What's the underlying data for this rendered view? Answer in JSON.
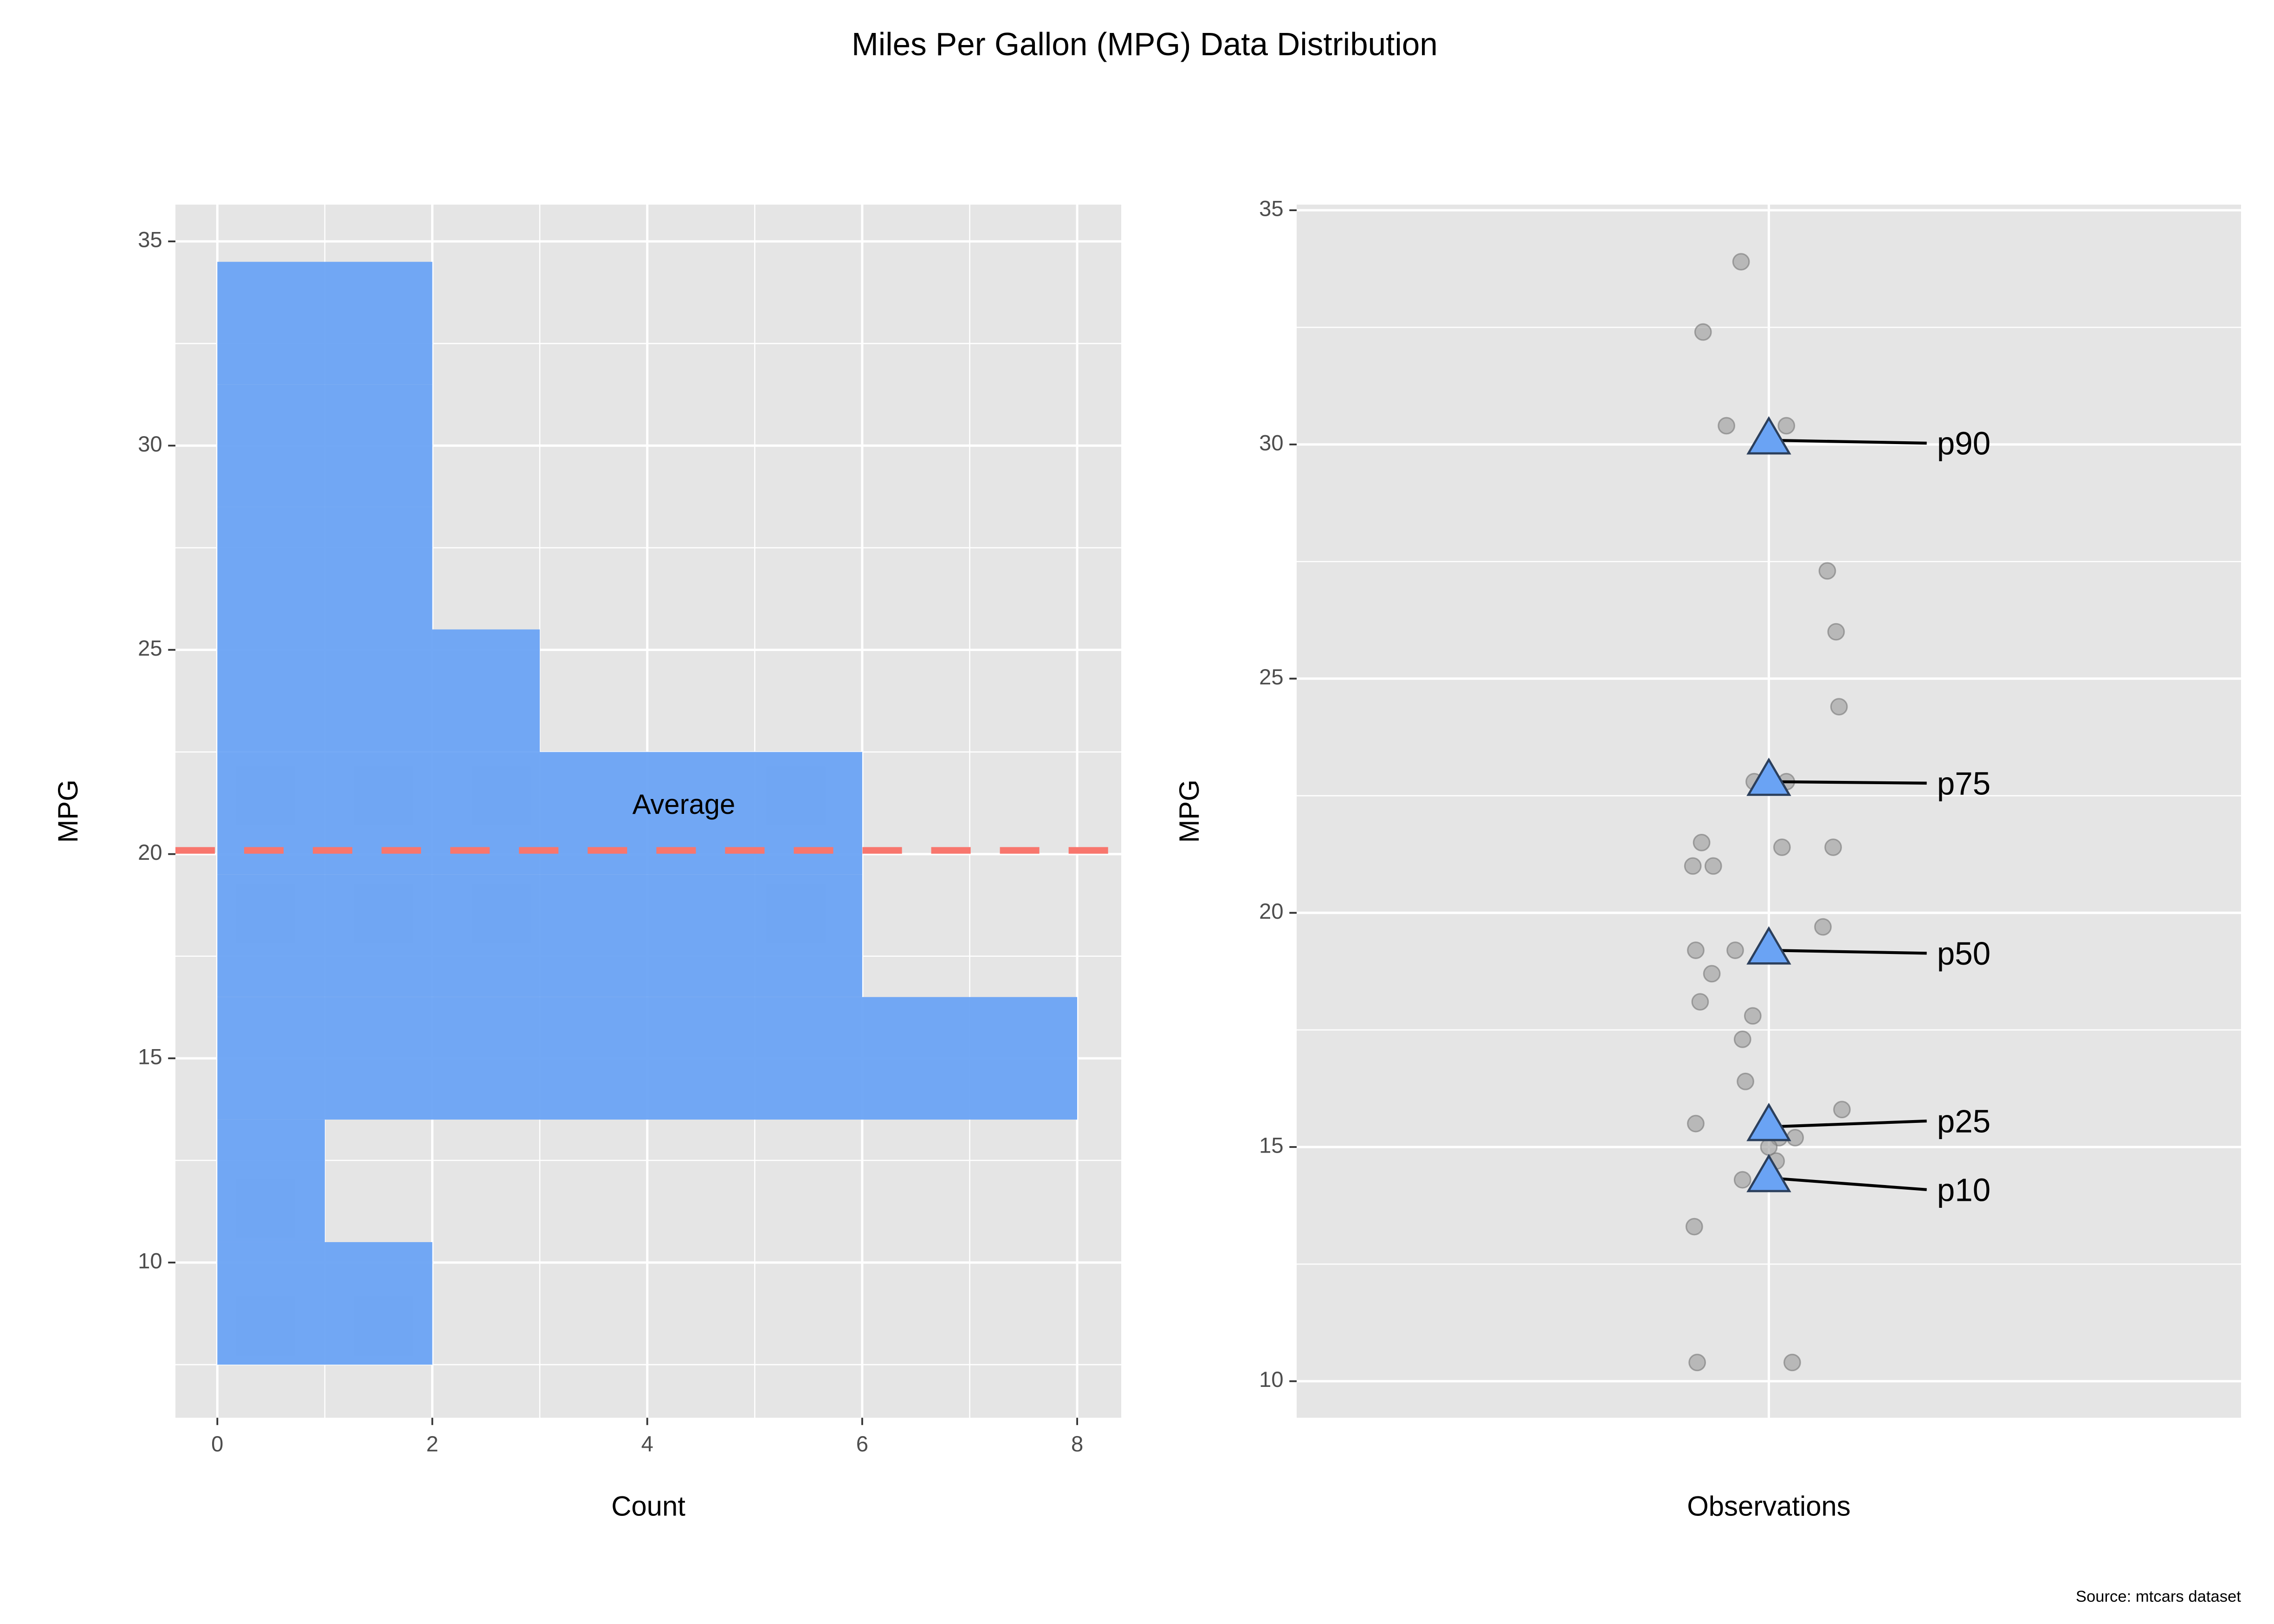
{
  "title": "Miles Per Gallon (MPG) Data Distribution",
  "caption": "Source: mtcars dataset",
  "chart_data": [
    {
      "type": "histogram",
      "orientation": "horizontal",
      "bins": [
        7.5,
        10.5,
        13.5,
        16.5,
        19.5,
        22.5,
        25.5,
        28.5,
        31.5,
        34.5
      ],
      "counts": [
        2,
        1,
        8,
        6,
        6,
        3,
        2,
        2,
        2
      ],
      "color": "#6aa3f4",
      "xlabel": "Count",
      "ylabel": "MPG",
      "xlim": [
        -0.39,
        8.41
      ],
      "xticks": [
        0,
        2,
        4,
        6,
        8
      ],
      "ylim": [
        6.2,
        35.9
      ],
      "yticks": [
        10,
        15,
        20,
        25,
        30,
        35
      ],
      "grid": true,
      "hline": {
        "value": 20.09,
        "label": "Average",
        "color": "#f8766d"
      }
    },
    {
      "type": "strip",
      "xlabel": "Observations",
      "ylabel": "MPG",
      "values": [
        21.0,
        21.0,
        22.8,
        21.4,
        18.7,
        18.1,
        14.3,
        24.4,
        22.8,
        19.2,
        17.8,
        16.4,
        17.3,
        15.2,
        10.4,
        10.4,
        14.7,
        32.4,
        30.4,
        33.9,
        21.5,
        15.5,
        15.2,
        13.3,
        19.2,
        27.3,
        26.0,
        30.4,
        15.8,
        19.7,
        15.0,
        21.4
      ],
      "point_color": "#999999",
      "ylim": [
        9.22,
        35.12
      ],
      "yticks": [
        10,
        15,
        20,
        25,
        30,
        35
      ],
      "grid": true,
      "percentiles": {
        "names": [
          "p10",
          "p25",
          "p50",
          "p75",
          "p90"
        ],
        "values": [
          14.34,
          15.43,
          19.2,
          22.8,
          30.09
        ],
        "color": "#6aa3f4"
      }
    }
  ]
}
